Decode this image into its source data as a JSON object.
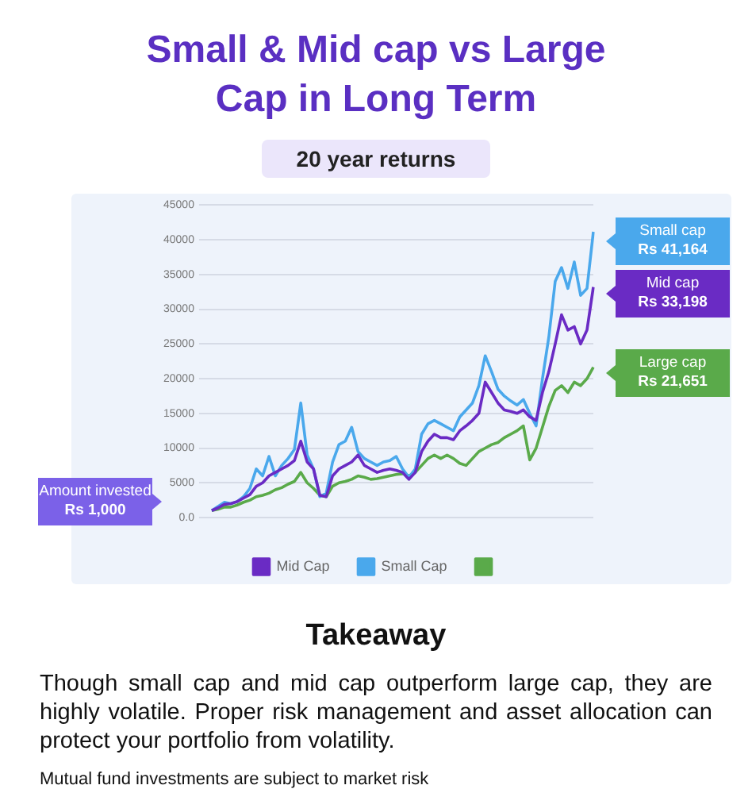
{
  "chart_data": {
    "type": "line",
    "title": "Small & Mid cap vs Large Cap in Long Term",
    "subtitle": "20 year returns",
    "categories": [
      null,
      null,
      null,
      null,
      null,
      null,
      null,
      null,
      null,
      null,
      null,
      null,
      null,
      null,
      null,
      null,
      null,
      null,
      null,
      null,
      null,
      null,
      null,
      null,
      null,
      null,
      null,
      null,
      null,
      null,
      null,
      null,
      null,
      null,
      null,
      null,
      null,
      null,
      null,
      null,
      null,
      null,
      null,
      null,
      null,
      null,
      null,
      null,
      null,
      null,
      null,
      null,
      null,
      null,
      null,
      null,
      null,
      null,
      null,
      null,
      null
    ],
    "series": [
      {
        "name": "Mid Cap",
        "color": "#6a2bc4",
        "values": [
          1000,
          1400,
          1900,
          2000,
          2300,
          2800,
          3300,
          4500,
          5000,
          6000,
          6500,
          7000,
          7500,
          8200,
          11000,
          8000,
          7000,
          3200,
          3000,
          6000,
          7000,
          7500,
          8000,
          9000,
          7500,
          7000,
          6500,
          6800,
          7000,
          6800,
          6500,
          5500,
          6500,
          9500,
          11000,
          12000,
          11500,
          11500,
          11200,
          12500,
          13200,
          14000,
          15000,
          19500,
          18000,
          16500,
          15500,
          15300,
          15000,
          15500,
          14500,
          14000,
          18000,
          21000,
          25000,
          29200,
          27000,
          27500,
          25000,
          27000,
          33198
        ]
      },
      {
        "name": "Small Cap",
        "color": "#4aa8ec",
        "values": [
          1000,
          1600,
          2200,
          2000,
          2300,
          3000,
          4200,
          7000,
          6000,
          8800,
          6000,
          7500,
          8500,
          9800,
          16500,
          9000,
          7000,
          3000,
          3500,
          8000,
          10500,
          11000,
          13000,
          9500,
          8500,
          8000,
          7500,
          8000,
          8200,
          8800,
          7000,
          5800,
          7000,
          12000,
          13500,
          14000,
          13500,
          13000,
          12500,
          14500,
          15500,
          16500,
          19000,
          23300,
          21000,
          18500,
          17500,
          16800,
          16200,
          17000,
          15000,
          13200,
          20000,
          26000,
          34000,
          36000,
          33000,
          36800,
          32000,
          33000,
          41164
        ]
      },
      {
        "color": "#5aaa4a",
        "values": [
          1000,
          1200,
          1500,
          1500,
          1800,
          2200,
          2500,
          3000,
          3200,
          3500,
          4000,
          4300,
          4800,
          5200,
          6500,
          5000,
          4200,
          3200,
          3000,
          4500,
          5000,
          5200,
          5500,
          6000,
          5800,
          5500,
          5600,
          5800,
          6000,
          6200,
          6300,
          6000,
          6500,
          7500,
          8500,
          9000,
          8500,
          9000,
          8500,
          7800,
          7500,
          8500,
          9500,
          10000,
          10500,
          10800,
          11500,
          12000,
          12500,
          13200,
          8300,
          10000,
          13000,
          16000,
          18300,
          19000,
          18000,
          19500,
          19000,
          20000,
          21651
        ]
      }
    ],
    "ylim": [
      0,
      45000
    ],
    "yticks": [
      {
        "value": 0,
        "label": "0.0"
      },
      5000,
      10000,
      15000,
      20000,
      25000,
      30000,
      35000,
      40000,
      45000
    ],
    "grid": "y",
    "legend": "bottom",
    "tick_labels": "y",
    "marker": "none",
    "line_style": "solid",
    "annotations": [
      "Amount invested\nRs 1,000",
      "Small cap\nRs 41,164",
      "Mid cap\nRs 33,198",
      "Large cap\nRs 21,651",
      "Takeaway",
      "Though small cap and mid cap outperform large cap, they are highly volatile. Proper risk management and asset allocation can protect your portfolio from volatility.",
      "Mutual fund investments are subject to market risk"
    ]
  }
}
